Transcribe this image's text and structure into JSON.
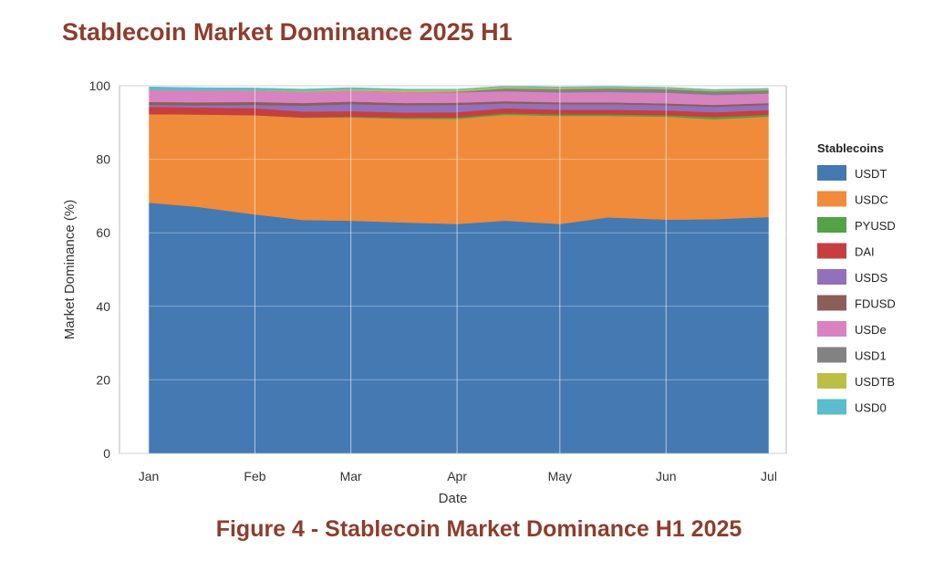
{
  "header": {
    "title": "Stablecoin Market Dominance 2025 H1"
  },
  "footer": {
    "caption": "Figure 4 - Stablecoin Market Dominance H1 2025"
  },
  "chart_data": {
    "type": "area",
    "stacked": true,
    "xlabel": "Date",
    "ylabel": "Market Dominance (%)",
    "ylim": [
      0,
      100
    ],
    "yticks": [
      0,
      20,
      40,
      60,
      80,
      100
    ],
    "x_days": [
      0,
      14,
      31,
      45,
      59,
      75,
      90,
      104,
      120,
      134,
      151,
      165,
      181
    ],
    "xticks": [
      {
        "day": 0,
        "label": "Jan"
      },
      {
        "day": 31,
        "label": "Feb"
      },
      {
        "day": 59,
        "label": "Mar"
      },
      {
        "day": 90,
        "label": "Apr"
      },
      {
        "day": 120,
        "label": "May"
      },
      {
        "day": 151,
        "label": "Jun"
      },
      {
        "day": 181,
        "label": "Jul"
      }
    ],
    "grid": true,
    "legend": {
      "title": "Stablecoins",
      "placement": "right"
    },
    "series": [
      {
        "name": "USDT",
        "color": "#4479b2",
        "values": [
          68.2,
          67.1,
          65.0,
          63.5,
          63.3,
          62.8,
          62.4,
          63.3,
          62.4,
          64.2,
          63.6,
          63.7,
          64.3
        ]
      },
      {
        "name": "USDC",
        "color": "#ef8b3a",
        "values": [
          24.1,
          25.1,
          27.0,
          27.8,
          28.1,
          28.2,
          28.6,
          28.8,
          29.4,
          27.6,
          28.0,
          27.2,
          27.3
        ]
      },
      {
        "name": "PYUSD",
        "color": "#53a245",
        "values": [
          0,
          0,
          0,
          0.1,
          0.2,
          0.3,
          0.4,
          0.4,
          0.4,
          0.4,
          0.4,
          0.6,
          0.5
        ]
      },
      {
        "name": "DAI",
        "color": "#c73e3e",
        "values": [
          2.0,
          1.9,
          1.9,
          1.6,
          1.5,
          1.4,
          1.4,
          1.4,
          1.3,
          1.3,
          1.3,
          1.3,
          1.3
        ]
      },
      {
        "name": "USDS",
        "color": "#9370bb",
        "values": [
          0.5,
          0.6,
          0.9,
          1.6,
          1.9,
          2.0,
          2.0,
          1.3,
          1.5,
          1.5,
          1.4,
          1.5,
          1.4
        ]
      },
      {
        "name": "FDUSD",
        "color": "#8b5e57",
        "values": [
          0.8,
          0.8,
          0.8,
          0.7,
          0.7,
          0.6,
          0.6,
          0.6,
          0.5,
          0.5,
          0.5,
          0.5,
          0.5
        ]
      },
      {
        "name": "USDe",
        "color": "#d783c0",
        "values": [
          3.3,
          3.3,
          3.1,
          3.0,
          3.0,
          3.0,
          2.8,
          2.7,
          2.7,
          2.8,
          2.9,
          2.7,
          2.6
        ]
      },
      {
        "name": "USD1",
        "color": "#828282",
        "values": [
          0,
          0,
          0,
          0,
          0,
          0,
          0.2,
          0.8,
          0.9,
          1.0,
          1.0,
          1.0,
          0.9
        ]
      },
      {
        "name": "USDTB",
        "color": "#bdbe46",
        "values": [
          0,
          0,
          0.1,
          0.3,
          0.4,
          0.5,
          0.5,
          0.4,
          0.4,
          0.3,
          0.3,
          0.3,
          0.3
        ]
      },
      {
        "name": "USD0",
        "color": "#5bbdcb",
        "values": [
          0.8,
          0.7,
          0.6,
          0.5,
          0.4,
          0.3,
          0.2,
          0.2,
          0.2,
          0.2,
          0.2,
          0.2,
          0.2
        ]
      }
    ]
  }
}
